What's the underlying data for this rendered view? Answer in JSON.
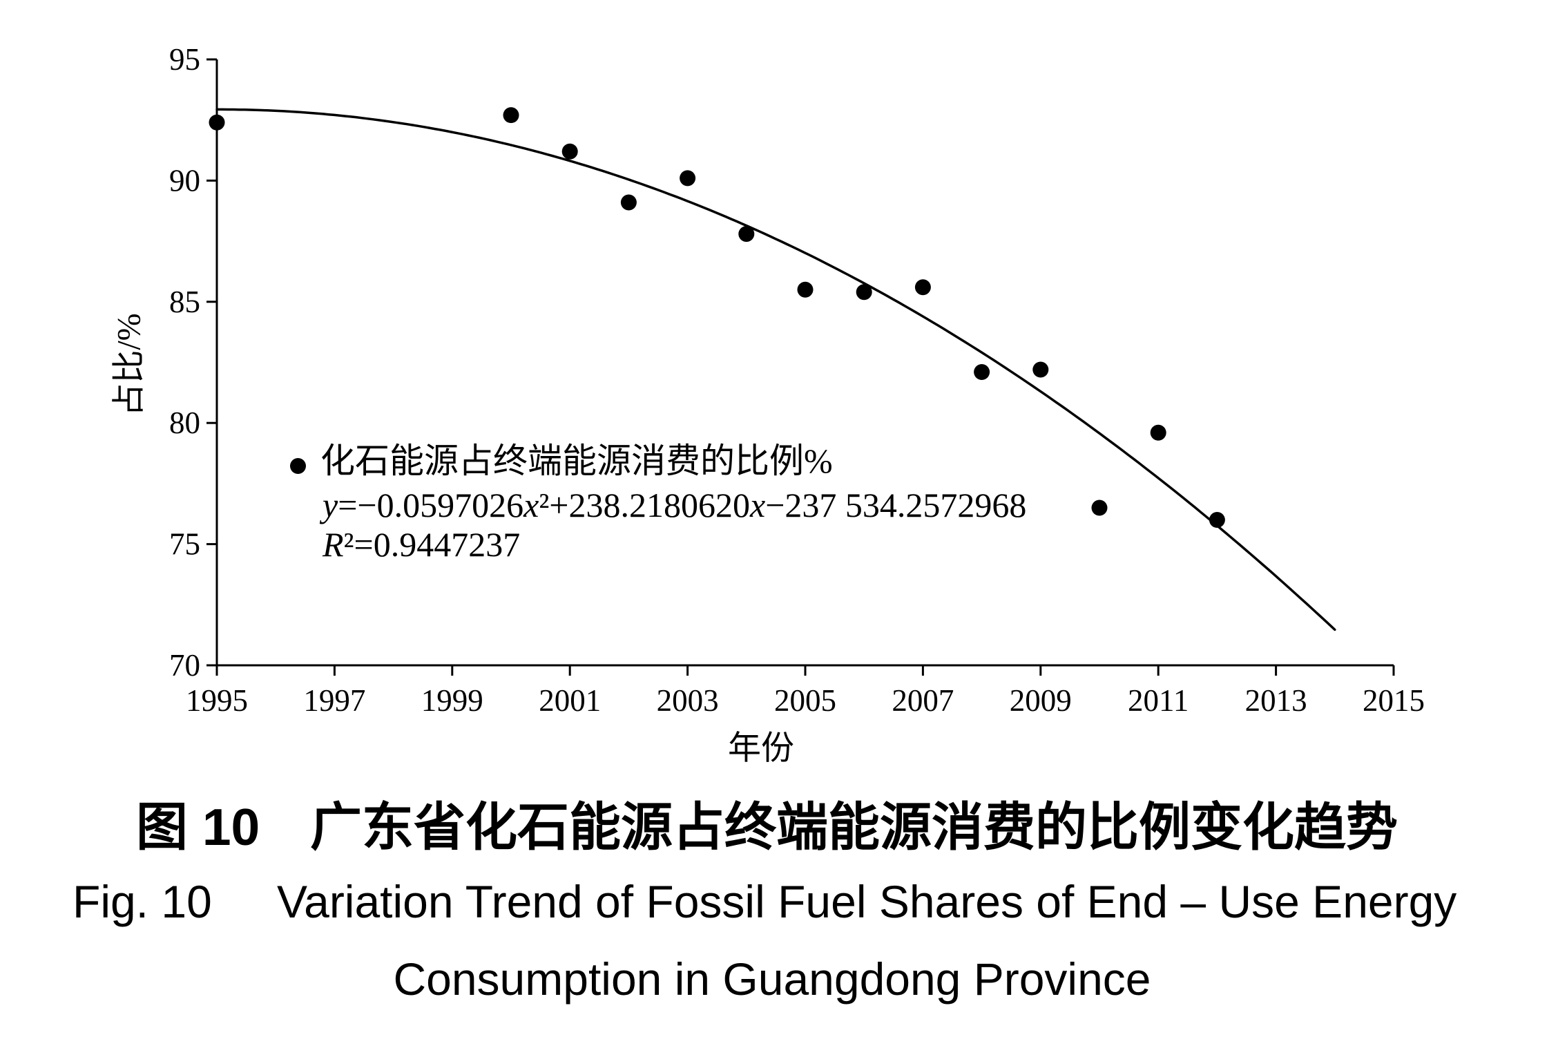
{
  "chart_data": {
    "type": "scatter",
    "xlabel": "年份",
    "ylabel": "占比/%",
    "xlim": [
      1995,
      2015
    ],
    "ylim": [
      70,
      95
    ],
    "x_ticks": [
      1995,
      1997,
      1999,
      2001,
      2003,
      2005,
      2007,
      2009,
      2011,
      2013,
      2015
    ],
    "y_ticks": [
      95,
      90,
      85,
      80,
      75,
      70
    ],
    "grid": false,
    "legend_position": "lower-left",
    "series": [
      {
        "name": "化石能源占终端能源消费的比例%",
        "color": "#000000",
        "x": [
          1995,
          2000,
          2001,
          2002,
          2003,
          2004,
          2005,
          2006,
          2007,
          2008,
          2009,
          2010,
          2011,
          2012
        ],
        "y": [
          92.4,
          92.7,
          91.2,
          89.1,
          90.1,
          87.8,
          85.5,
          85.4,
          85.6,
          82.1,
          82.2,
          76.5,
          79.6,
          76.0
        ]
      }
    ],
    "trendline": {
      "equation": "y=−0.0597026x²+238.2180620x−237 534.2572968",
      "r_squared_label": "R²=0.9447237",
      "coefficients": [
        -0.0597026,
        238.218062,
        -237534.2572968
      ],
      "x_range": [
        1995,
        2014
      ],
      "color": "#000000"
    }
  },
  "caption": {
    "cn_number": "图 10",
    "cn_title": "广东省化石能源占终端能源消费的比例变化趋势",
    "en_number": "Fig. 10",
    "en_title_line1": "Variation Trend of Fossil Fuel Shares of End – Use Energy",
    "en_title_line2": "Consumption in Guangdong Province"
  }
}
